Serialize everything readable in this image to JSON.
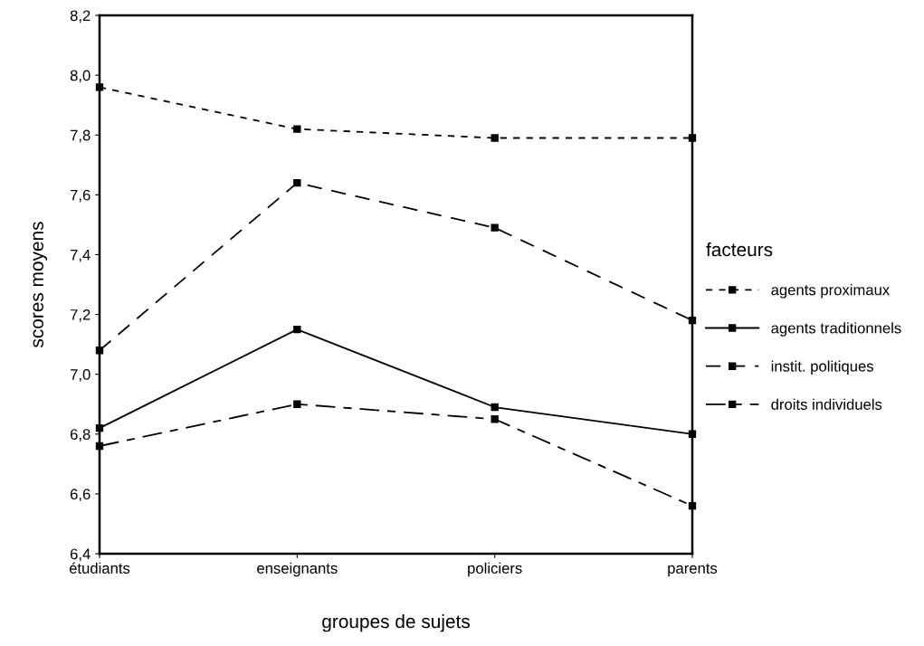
{
  "chart_data": {
    "type": "line",
    "xlabel": "groupes de sujets",
    "ylabel": "scores moyens",
    "legend_title": "facteurs",
    "categories": [
      "étudiants",
      "enseignants",
      "policiers",
      "parents"
    ],
    "series": [
      {
        "name": "agents proximaux",
        "color": "#000000",
        "line_style": "dotted",
        "values": [
          7.96,
          7.82,
          7.79,
          7.79
        ]
      },
      {
        "name": "agents traditionnels",
        "color": "#000000",
        "line_style": "solid",
        "values": [
          6.82,
          7.15,
          6.89,
          6.8
        ]
      },
      {
        "name": "instit. politiques",
        "color": "#000000",
        "line_style": "dashed",
        "values": [
          7.08,
          7.64,
          7.49,
          7.18
        ]
      },
      {
        "name": "droits individuels",
        "color": "#000000",
        "line_style": "dashdot",
        "values": [
          6.76,
          6.9,
          6.85,
          6.56
        ]
      }
    ],
    "ylim": [
      6.4,
      8.2
    ],
    "yticks": [
      {
        "value": 6.4,
        "label": "6,4"
      },
      {
        "value": 6.6,
        "label": "6,6"
      },
      {
        "value": 6.8,
        "label": "6,8"
      },
      {
        "value": 7.0,
        "label": "7,0"
      },
      {
        "value": 7.2,
        "label": "7,2"
      },
      {
        "value": 7.4,
        "label": "7,4"
      },
      {
        "value": 7.6,
        "label": "7,6"
      },
      {
        "value": 7.8,
        "label": "7,8"
      },
      {
        "value": 8.0,
        "label": "8,0"
      },
      {
        "value": 8.2,
        "label": "8,2"
      }
    ],
    "marker": "square",
    "grid": false,
    "legend": "right"
  }
}
